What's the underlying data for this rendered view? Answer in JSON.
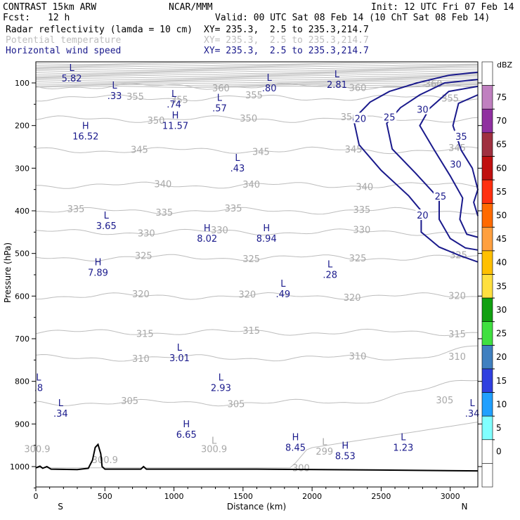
{
  "header": {
    "title": "CONTRAST 15km ARW",
    "org": "NCAR/MMM",
    "init": "Init: 12 UTC Fri 07 Feb 14",
    "fcst_label": "Fcst:",
    "fcst_value": "12 h",
    "valid": "Valid: 00 UTC Sat 08 Feb 14 (10 ChT Sat 08 Feb 14)",
    "fields": [
      {
        "name": "Radar reflectivity (lamda = 10 cm)",
        "xy": "XY= 235.3,  2.5 to 235.3,214.7",
        "color": "#000000"
      },
      {
        "name": "Potential temperature",
        "xy": "XY= 235.3,  2.5 to 235.3,214.7",
        "color": "#bdbdbd"
      },
      {
        "name": "Horizontal wind speed",
        "xy": "XY= 235.3,  2.5 to 235.3,214.7",
        "color": "#1a1a8c"
      }
    ]
  },
  "chart_data": {
    "type": "cross-section",
    "xlabel": "Distance (km)",
    "ylabel": "Pressure (hPa)",
    "xlim": [
      0,
      3200
    ],
    "ylim": [
      1050,
      50
    ],
    "x_ticks": [
      "0",
      "500",
      "1000",
      "1500",
      "2000",
      "2500",
      "3000"
    ],
    "x_tick_values": [
      0,
      500,
      1000,
      1500,
      2000,
      2500,
      3000
    ],
    "y_ticks": [
      "100",
      "200",
      "300",
      "400",
      "500",
      "600",
      "700",
      "800",
      "900",
      "1000"
    ],
    "y_tick_values": [
      100,
      200,
      300,
      400,
      500,
      600,
      700,
      800,
      900,
      1000
    ],
    "x_end_left": "S",
    "x_end_right": "N",
    "colorbar": {
      "units": "dBZ",
      "levels": [
        "75",
        "70",
        "65",
        "60",
        "55",
        "50",
        "45",
        "40",
        "35",
        "30",
        "25",
        "20",
        "15",
        "10",
        "5",
        "0"
      ],
      "colors": [
        "#ffffff",
        "#c080c0",
        "#9030a0",
        "#a03040",
        "#c01010",
        "#ff3010",
        "#ff6a00",
        "#ffa040",
        "#ffc000",
        "#ffe040",
        "#10a010",
        "#40e040",
        "#4080c0",
        "#3040e0",
        "#20a0ff",
        "#80ffff",
        "#ffffff",
        "#ffffff"
      ]
    },
    "theta_contours": [
      {
        "value": 360,
        "p": 108,
        "labels": [
          {
            "x": 1340,
            "text": "360"
          },
          {
            "x": 2330,
            "text": "360"
          },
          {
            "x": 2880,
            "text": "360"
          }
        ]
      },
      {
        "value": 355,
        "p": 135,
        "labels": [
          {
            "x": 720,
            "text": "355"
          },
          {
            "x": 1580,
            "text": "355"
          },
          {
            "x": 1040,
            "text": "355"
          },
          {
            "x": 3000,
            "text": "355"
          }
        ]
      },
      {
        "value": 350,
        "p": 185,
        "labels": [
          {
            "x": 870,
            "text": "350"
          },
          {
            "x": 1540,
            "text": "350"
          },
          {
            "x": 2270,
            "text": "350"
          }
        ]
      },
      {
        "value": 345,
        "p": 258,
        "labels": [
          {
            "x": 750,
            "text": "345"
          },
          {
            "x": 1630,
            "text": "345"
          },
          {
            "x": 2300,
            "text": "345"
          },
          {
            "x": 3050,
            "text": "345"
          }
        ]
      },
      {
        "value": 340,
        "p": 340,
        "labels": [
          {
            "x": 920,
            "text": "340"
          },
          {
            "x": 1560,
            "text": "340"
          },
          {
            "x": 2380,
            "text": "340"
          }
        ]
      },
      {
        "value": 335,
        "p": 400,
        "labels": [
          {
            "x": 290,
            "text": "335"
          },
          {
            "x": 930,
            "text": "335"
          },
          {
            "x": 1430,
            "text": "335"
          },
          {
            "x": 2360,
            "text": "335"
          }
        ]
      },
      {
        "value": 330,
        "p": 450,
        "labels": [
          {
            "x": 800,
            "text": "330"
          },
          {
            "x": 1330,
            "text": "330"
          },
          {
            "x": 2360,
            "text": "330"
          }
        ]
      },
      {
        "value": 325,
        "p": 510,
        "labels": [
          {
            "x": 780,
            "text": "325"
          },
          {
            "x": 1560,
            "text": "325"
          },
          {
            "x": 2330,
            "text": "325"
          },
          {
            "x": 3060,
            "text": "325"
          }
        ]
      },
      {
        "value": 320,
        "p": 600,
        "labels": [
          {
            "x": 760,
            "text": "320"
          },
          {
            "x": 1530,
            "text": "320"
          },
          {
            "x": 2290,
            "text": "320"
          },
          {
            "x": 3050,
            "text": "320"
          }
        ]
      },
      {
        "value": 315,
        "p": 685,
        "labels": [
          {
            "x": 790,
            "text": "315"
          },
          {
            "x": 1560,
            "text": "315"
          },
          {
            "x": 3050,
            "text": "315"
          }
        ]
      },
      {
        "value": 310,
        "p": 745,
        "labels": [
          {
            "x": 760,
            "text": "310"
          },
          {
            "x": 2330,
            "text": "310"
          },
          {
            "x": 3050,
            "text": "310"
          }
        ]
      },
      {
        "value": 305,
        "p": 850,
        "labels": [
          {
            "x": 680,
            "text": "305"
          },
          {
            "x": 1450,
            "text": "305"
          },
          {
            "x": 2960,
            "text": "305"
          }
        ]
      },
      {
        "value": 300,
        "p": 1003,
        "labels": [
          {
            "x": 1920,
            "text": "300"
          }
        ]
      }
    ],
    "theta_extra_labels": [
      {
        "x": 10,
        "p": 960,
        "text": "300.9"
      },
      {
        "x": 1290,
        "p": 960,
        "text": "300.9"
      },
      {
        "x": 500,
        "p": 985,
        "text": "300.9"
      },
      {
        "x": 2090,
        "p": 965,
        "text": "299"
      },
      {
        "x": 2090,
        "p": 943,
        "text": "L"
      },
      {
        "x": 1290,
        "p": 940,
        "text": "L"
      }
    ],
    "wind_contours": [
      {
        "value": 20,
        "labels": [
          {
            "x": 2350,
            "p": 183
          },
          {
            "x": 2800,
            "p": 410
          }
        ]
      },
      {
        "value": 25,
        "labels": [
          {
            "x": 2560,
            "p": 180
          },
          {
            "x": 2930,
            "p": 365
          }
        ]
      },
      {
        "value": 30,
        "labels": [
          {
            "x": 2800,
            "p": 162
          },
          {
            "x": 3040,
            "p": 290
          }
        ]
      },
      {
        "value": 35,
        "labels": [
          {
            "x": 3080,
            "p": 225
          }
        ]
      }
    ],
    "wind_extrema": [
      {
        "type": "L",
        "value": "5.82",
        "x": 260,
        "p": 77
      },
      {
        "type": "L",
        "value": ".33",
        "x": 570,
        "p": 118
      },
      {
        "type": "L",
        "value": ".74",
        "x": 1000,
        "p": 138
      },
      {
        "type": "L",
        "value": ".57",
        "x": 1330,
        "p": 147
      },
      {
        "type": "L",
        "value": ".80",
        "x": 1690,
        "p": 100
      },
      {
        "type": "L",
        "value": "2.81",
        "x": 2180,
        "p": 92
      },
      {
        "type": "H",
        "value": "16.52",
        "x": 360,
        "p": 213
      },
      {
        "type": "H",
        "value": "11.57",
        "x": 1010,
        "p": 188
      },
      {
        "type": "L",
        "value": ".43",
        "x": 1460,
        "p": 288
      },
      {
        "type": "L",
        "value": "3.65",
        "x": 510,
        "p": 423
      },
      {
        "type": "H",
        "value": "8.02",
        "x": 1240,
        "p": 453
      },
      {
        "type": "H",
        "value": "8.94",
        "x": 1670,
        "p": 453
      },
      {
        "type": "H",
        "value": "7.89",
        "x": 450,
        "p": 533
      },
      {
        "type": "L",
        "value": ".28",
        "x": 2130,
        "p": 538
      },
      {
        "type": "L",
        "value": ".49",
        "x": 1790,
        "p": 583
      },
      {
        "type": "L",
        "value": "3.01",
        "x": 1040,
        "p": 733
      },
      {
        "type": "L",
        "value": "2.93",
        "x": 1340,
        "p": 803
      },
      {
        "type": "L",
        "value": ".8",
        "x": 20,
        "p": 803
      },
      {
        "type": "L",
        "value": ".34",
        "x": 180,
        "p": 863
      },
      {
        "type": "H",
        "value": "6.65",
        "x": 1090,
        "p": 913
      },
      {
        "type": "H",
        "value": "8.45",
        "x": 1880,
        "p": 943
      },
      {
        "type": "H",
        "value": "8.53",
        "x": 2240,
        "p": 963
      },
      {
        "type": "L",
        "value": "1.23",
        "x": 2660,
        "p": 943
      },
      {
        "type": "L",
        "value": ".34",
        "x": 3160,
        "p": 863
      }
    ]
  }
}
